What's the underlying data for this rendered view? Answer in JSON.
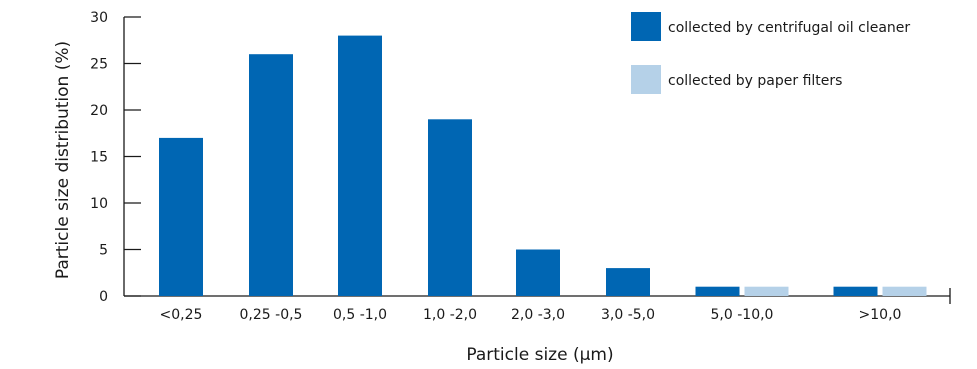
{
  "chart_data": {
    "type": "bar",
    "title": "",
    "xlabel": "Particle size (µm)",
    "ylabel": "Particle size distribution (%)",
    "ylim": [
      0,
      30
    ],
    "yticks": [
      0,
      5,
      10,
      15,
      20,
      25,
      30
    ],
    "categories": [
      "<0,25",
      "0,25 -0,5",
      "0,5 -1,0",
      "1,0 -2,0",
      "2,0 -3,0",
      "3,0 -5,0",
      "5,0 -10,0",
      ">10,0"
    ],
    "series": [
      {
        "name": "collected by centrifugal oil cleaner",
        "color": "#0066b3",
        "values": [
          17,
          26,
          28,
          19,
          5,
          3,
          1,
          1
        ]
      },
      {
        "name": "collected by paper filters",
        "color": "#b5d1e8",
        "values": [
          null,
          null,
          null,
          null,
          null,
          null,
          1,
          1
        ]
      }
    ],
    "legend_position": "top-right",
    "grid": false
  }
}
